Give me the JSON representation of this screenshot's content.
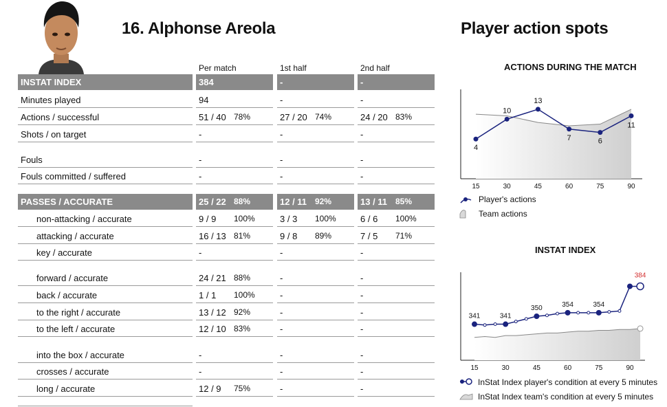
{
  "player": {
    "name": "16. Alphonse Areola"
  },
  "right_title": "Player action spots",
  "columns": [
    "Per match",
    "1st half",
    "2nd half"
  ],
  "rows": [
    {
      "label": "INSTAT INDEX",
      "type": "header",
      "cells": [
        [
          "384",
          ""
        ],
        [
          "-",
          ""
        ],
        [
          "-",
          ""
        ]
      ]
    },
    {
      "label": "Minutes played",
      "type": "normal",
      "cells": [
        [
          "94",
          ""
        ],
        [
          "-",
          ""
        ],
        [
          "-",
          ""
        ]
      ]
    },
    {
      "label": "Actions / successful",
      "type": "normal",
      "cells": [
        [
          "51 / 40",
          "78%"
        ],
        [
          "27 / 20",
          "74%"
        ],
        [
          "24 / 20",
          "83%"
        ]
      ]
    },
    {
      "label": "Shots / on target",
      "type": "normal",
      "cells": [
        [
          "-",
          ""
        ],
        [
          "-",
          ""
        ],
        [
          "-",
          ""
        ]
      ]
    },
    {
      "label": "Fouls",
      "type": "normal",
      "cells": [
        [
          "-",
          ""
        ],
        [
          "-",
          ""
        ],
        [
          "-",
          ""
        ]
      ]
    },
    {
      "label": "Fouls committed / suffered",
      "type": "normal",
      "cells": [
        [
          "-",
          ""
        ],
        [
          "-",
          ""
        ],
        [
          "-",
          ""
        ]
      ]
    },
    {
      "label": "PASSES / ACCURATE",
      "type": "header",
      "cells": [
        [
          "25 / 22",
          "88%"
        ],
        [
          "12 / 11",
          "92%"
        ],
        [
          "13 / 11",
          "85%"
        ]
      ]
    },
    {
      "label": "non-attacking / accurate",
      "type": "indent",
      "cells": [
        [
          "9 / 9",
          "100%"
        ],
        [
          "3 / 3",
          "100%"
        ],
        [
          "6 / 6",
          "100%"
        ]
      ]
    },
    {
      "label": "attacking / accurate",
      "type": "indent",
      "cells": [
        [
          "16 / 13",
          "81%"
        ],
        [
          "9 / 8",
          "89%"
        ],
        [
          "7 / 5",
          "71%"
        ]
      ]
    },
    {
      "label": "key / accurate",
      "type": "indent",
      "cells": [
        [
          "-",
          ""
        ],
        [
          "-",
          ""
        ],
        [
          "-",
          ""
        ]
      ]
    },
    {
      "label": "forward / accurate",
      "type": "indent",
      "cells": [
        [
          "24 / 21",
          "88%"
        ],
        [
          "-",
          ""
        ],
        [
          "-",
          ""
        ]
      ]
    },
    {
      "label": "back / accurate",
      "type": "indent",
      "cells": [
        [
          "1 / 1",
          "100%"
        ],
        [
          "-",
          ""
        ],
        [
          "-",
          ""
        ]
      ]
    },
    {
      "label": "to the right / accurate",
      "type": "indent",
      "cells": [
        [
          "13 / 12",
          "92%"
        ],
        [
          "-",
          ""
        ],
        [
          "-",
          ""
        ]
      ]
    },
    {
      "label": "to the left / accurate",
      "type": "indent",
      "cells": [
        [
          "12 / 10",
          "83%"
        ],
        [
          "-",
          ""
        ],
        [
          "-",
          ""
        ]
      ]
    },
    {
      "label": "into the box / accurate",
      "type": "indent",
      "cells": [
        [
          "-",
          ""
        ],
        [
          "-",
          ""
        ],
        [
          "-",
          ""
        ]
      ]
    },
    {
      "label": "crosses / accurate",
      "type": "indent",
      "cells": [
        [
          "-",
          ""
        ],
        [
          "-",
          ""
        ],
        [
          "-",
          ""
        ]
      ]
    },
    {
      "label": "long / accurate",
      "type": "indent",
      "cells": [
        [
          "12 / 9",
          "75%"
        ],
        [
          "-",
          ""
        ],
        [
          "-",
          ""
        ]
      ]
    }
  ],
  "colors": {
    "player_series": "#1a237e",
    "team_area": "#d9d9d9",
    "highlight": "#d32f2f",
    "header_bg": "#8a8a8a"
  },
  "chart_data": [
    {
      "type": "line",
      "title": "ACTIONS DURING THE MATCH",
      "x_ticks": [
        15,
        30,
        45,
        60,
        75,
        90
      ],
      "series": [
        {
          "name": "Player's actions",
          "x": [
            15,
            30,
            45,
            60,
            75,
            90
          ],
          "values": [
            4,
            10,
            13,
            7,
            6,
            11
          ]
        },
        {
          "name": "Team actions",
          "x": [
            15,
            30,
            45,
            60,
            75,
            90
          ],
          "values": [
            11.5,
            11,
            9,
            8,
            8.5,
            13
          ],
          "style": "area"
        }
      ]
    },
    {
      "type": "line",
      "title": "INSTAT INDEX",
      "x_ticks": [
        15,
        30,
        45,
        60,
        75,
        90
      ],
      "series": [
        {
          "name": "InStat Index player's condition at every 5 minutes",
          "x": [
            15,
            20,
            25,
            30,
            35,
            40,
            45,
            50,
            55,
            60,
            65,
            70,
            75,
            80,
            85,
            90,
            95
          ],
          "values": [
            341,
            340,
            341,
            341,
            344,
            347,
            350,
            351,
            353,
            354,
            354,
            354,
            354,
            355,
            356,
            384,
            384
          ],
          "labels": [
            {
              "x": 15,
              "text": "341"
            },
            {
              "x": 30,
              "text": "341"
            },
            {
              "x": 45,
              "text": "350"
            },
            {
              "x": 60,
              "text": "354"
            },
            {
              "x": 75,
              "text": "354"
            },
            {
              "x": 95,
              "text": "384"
            }
          ]
        },
        {
          "name": "InStat Index team's condition at every 5 minutes",
          "x": [
            15,
            20,
            25,
            30,
            35,
            40,
            45,
            50,
            55,
            60,
            65,
            70,
            75,
            80,
            85,
            90,
            95
          ],
          "values": [
            326,
            327,
            326,
            328,
            328,
            329,
            330,
            331,
            331,
            332,
            333,
            333,
            334,
            334,
            335,
            335,
            336
          ],
          "style": "area"
        }
      ]
    }
  ]
}
